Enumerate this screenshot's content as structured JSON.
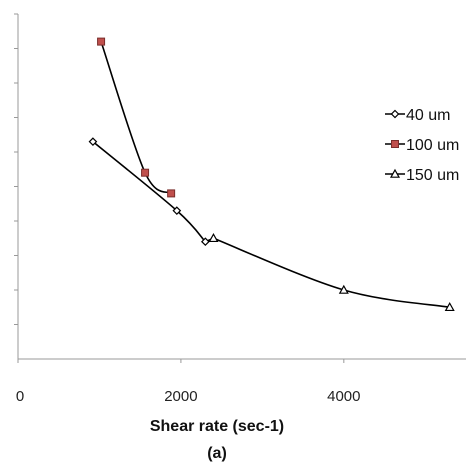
{
  "chart_data": {
    "type": "line",
    "xlabel": "Shear rate (sec-1)",
    "caption": "(a)",
    "xlim": [
      0,
      5500
    ],
    "ylim": [
      0,
      10
    ],
    "xticks": [
      0,
      2000,
      4000
    ],
    "xtick_labels": [
      "0",
      "2000",
      "4000"
    ],
    "grid": false,
    "legend_position": "right",
    "series": [
      {
        "name": "40 um",
        "marker": "diamond",
        "color": "#000000",
        "x": [
          920,
          1950,
          2300
        ],
        "y": [
          6.3,
          4.3,
          3.4
        ]
      },
      {
        "name": "100 um",
        "marker": "square",
        "color": "#c0504d",
        "x": [
          1020,
          1560,
          1880
        ],
        "y": [
          9.2,
          5.4,
          4.8
        ]
      },
      {
        "name": "150 um",
        "marker": "triangle",
        "color": "#000000",
        "x": [
          2400,
          4000,
          5300
        ],
        "y": [
          3.5,
          2.0,
          1.5
        ]
      }
    ]
  }
}
